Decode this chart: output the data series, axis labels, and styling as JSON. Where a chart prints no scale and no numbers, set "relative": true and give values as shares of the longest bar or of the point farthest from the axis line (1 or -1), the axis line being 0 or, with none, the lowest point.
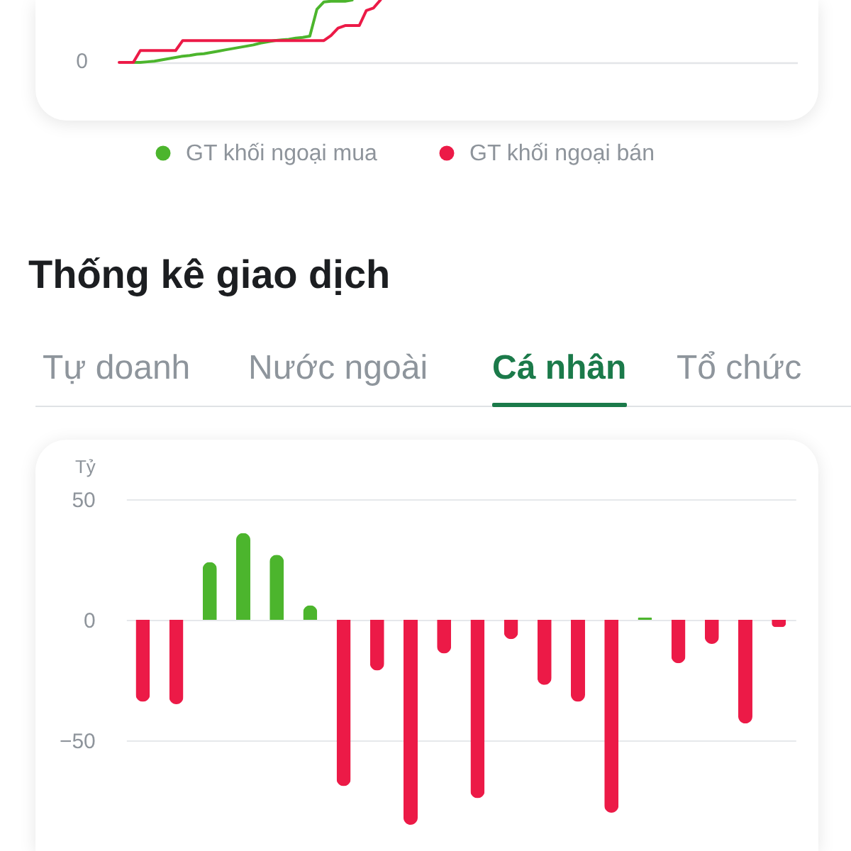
{
  "chart_data": [
    {
      "type": "line",
      "relative": true,
      "categories": [
        null,
        null,
        null,
        null,
        null,
        null,
        null,
        null,
        null,
        null,
        null,
        null,
        null,
        null,
        null,
        null,
        null,
        null,
        null,
        null,
        null,
        null,
        null,
        null,
        null,
        null,
        null,
        null,
        null,
        null,
        null,
        null,
        null,
        null,
        null,
        null,
        null,
        null,
        null,
        null,
        null,
        null,
        null,
        null,
        null,
        null,
        null,
        null,
        null,
        null,
        null,
        null,
        null,
        null,
        null,
        null,
        null,
        null,
        null,
        null,
        null,
        null,
        null,
        null,
        null,
        null,
        null,
        null,
        null,
        null,
        null,
        null,
        null,
        null,
        null,
        null,
        null,
        null,
        null,
        null,
        null,
        null,
        null,
        null,
        null,
        null,
        null,
        null,
        null,
        null,
        null,
        null,
        null,
        null,
        null,
        null,
        null
      ],
      "series": [
        {
          "name": "GT khối ngoại mua",
          "color": "#4cb52d",
          "values": [
            null,
            null,
            0,
            0,
            0.01,
            0.02,
            0.04,
            0.06,
            0.08,
            0.1,
            0.11,
            0.13,
            0.14,
            0.16,
            0.18,
            0.2,
            0.22,
            0.24,
            0.26,
            0.28,
            0.31,
            0.33,
            0.35,
            0.36,
            0.37,
            0.39,
            0.4,
            0.42,
            0.85,
            0.97,
            0.98,
            0.98,
            0.98,
            1,
            null,
            null,
            null,
            null,
            null,
            null,
            null,
            null,
            null,
            null,
            null,
            null,
            null,
            null,
            null,
            null,
            null,
            null,
            null,
            null,
            null,
            null,
            null,
            null,
            null,
            null,
            null,
            null,
            null,
            null,
            null,
            null,
            null,
            null,
            null,
            null,
            null,
            null,
            null,
            null,
            null,
            null,
            null,
            null,
            null,
            null,
            null,
            null,
            null,
            null,
            null,
            null,
            null,
            null,
            null,
            null,
            null,
            null,
            null,
            null,
            null,
            null,
            null
          ]
        },
        {
          "name": "GT khối ngoại bán",
          "color": "#ec1a47",
          "values": [
            0,
            0,
            0,
            0.19,
            0.19,
            0.19,
            0.19,
            0.19,
            0.19,
            0.35,
            0.35,
            0.35,
            0.35,
            0.35,
            0.35,
            0.35,
            0.35,
            0.35,
            0.35,
            0.35,
            0.35,
            0.35,
            0.35,
            0.35,
            0.35,
            0.35,
            0.35,
            0.35,
            0.35,
            0.35,
            0.43,
            0.55,
            0.59,
            0.59,
            0.59,
            0.83,
            0.87,
            1,
            null,
            null,
            null,
            null,
            null,
            null,
            null,
            null,
            null,
            null,
            null,
            null,
            null,
            null,
            null,
            null,
            null,
            null,
            null,
            null,
            null,
            null,
            null,
            null,
            null,
            null,
            null,
            null,
            null,
            null,
            null,
            null,
            null,
            null,
            null,
            null,
            null,
            null,
            null,
            null,
            null,
            null,
            null,
            null,
            null,
            null,
            null,
            null,
            null,
            null,
            null,
            null,
            null,
            null,
            null,
            null,
            null,
            null,
            null
          ]
        }
      ],
      "annotations": [
        "0"
      ],
      "legend": "bottom"
    },
    {
      "type": "bar",
      "title": "Thống kê giao dịch",
      "annotations": [
        "Tự doanh",
        "Nước ngoài",
        "Cá nhân",
        "Tổ chức"
      ],
      "ylabel": "Tỷ",
      "categories": [
        null,
        null,
        null,
        null,
        null,
        null,
        null,
        null,
        null,
        null,
        null,
        null,
        null,
        null,
        null,
        null,
        null,
        null,
        null,
        null
      ],
      "values": [
        -34,
        -35,
        24,
        36,
        27,
        6,
        -69,
        -21,
        -85,
        -14,
        -74,
        -8,
        -27,
        -34,
        -80,
        1,
        -18,
        -10,
        -43,
        -3
      ],
      "colors": [
        "#ec1a47",
        "#ec1a47",
        "#4cb52d",
        "#4cb52d",
        "#4cb52d",
        "#4cb52d",
        "#ec1a47",
        "#ec1a47",
        "#ec1a47",
        "#ec1a47",
        "#ec1a47",
        "#ec1a47",
        "#ec1a47",
        "#ec1a47",
        "#ec1a47",
        "#4cb52d",
        "#ec1a47",
        "#ec1a47",
        "#ec1a47",
        "#ec1a47"
      ],
      "ylim": [
        -85,
        50
      ],
      "yticks": [
        -50,
        0,
        50
      ],
      "grid": "y"
    }
  ]
}
